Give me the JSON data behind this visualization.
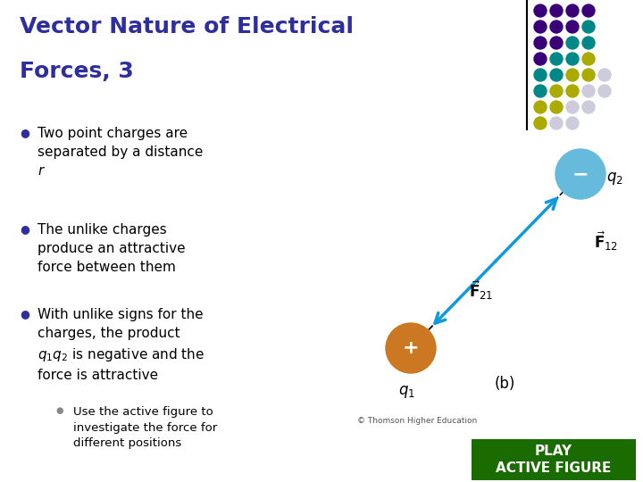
{
  "title_line1": "Vector Nature of Electrical",
  "title_line2": "Forces, 3",
  "title_color": "#2e2e9e",
  "bg_color": "#ffffff",
  "bullet_color": "#2e2e9e",
  "sub_bullet_color": "#888888",
  "q1_color": "#cc7722",
  "q2_color": "#66bbdd",
  "arrow_color": "#1199dd",
  "play_button_color": "#1a6b00",
  "play_button_text": "PLAY\nACTIVE FIGURE",
  "play_button_text_color": "#ffffff",
  "copyright_text": "© Thomson Higher Education",
  "dot_grid": [
    [
      "#3a0078",
      "#3a0078",
      "#3a0078",
      "#3a0078"
    ],
    [
      "#3a0078",
      "#3a0078",
      "#3a0078",
      "#008888"
    ],
    [
      "#3a0078",
      "#3a0078",
      "#008888",
      "#008888"
    ],
    [
      "#3a0078",
      "#008888",
      "#008888",
      "#aaaa00"
    ],
    [
      "#008888",
      "#008888",
      "#aaaa00",
      "#aaaa00",
      "#ccccdd"
    ],
    [
      "#008888",
      "#aaaa00",
      "#aaaa00",
      "#ccccdd",
      "#ccccdd"
    ],
    [
      "#aaaa00",
      "#aaaa00",
      "#ccccdd",
      "#ccccdd"
    ],
    [
      "#aaaa00",
      "#ccccdd",
      "#ccccdd"
    ]
  ]
}
